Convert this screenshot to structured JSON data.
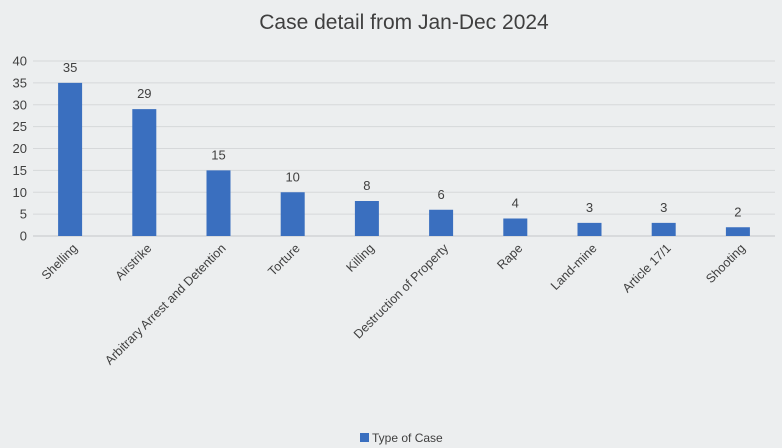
{
  "chart_data": {
    "type": "bar",
    "title": "Case detail from Jan-Dec 2024",
    "categories": [
      "Shelling",
      "Airstrike",
      "Arbitrary Arrest and Detention",
      "Torture",
      "Killing",
      "Destruction of Property",
      "Rape",
      "Land-mine",
      "Article 17/1",
      "Shooting"
    ],
    "series": [
      {
        "name": "Type of Case",
        "values": [
          35,
          29,
          15,
          10,
          8,
          6,
          4,
          3,
          3,
          2
        ],
        "color": "#3a6fbf"
      }
    ],
    "ylim": [
      0,
      40
    ],
    "yticks": [
      0,
      5,
      10,
      15,
      20,
      25,
      30,
      35,
      40
    ],
    "grid": true,
    "data_labels": true,
    "legend_position": "bottom"
  }
}
